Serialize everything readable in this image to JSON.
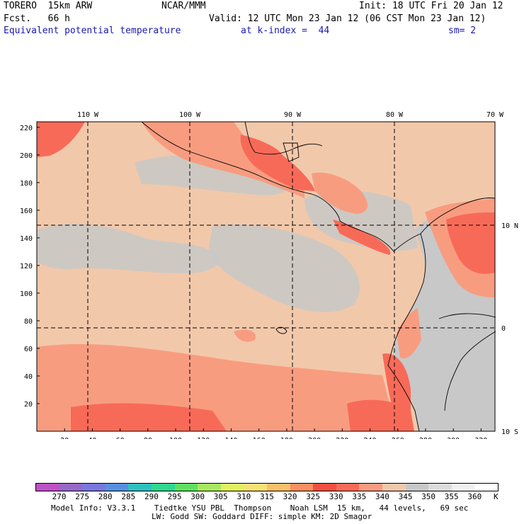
{
  "header": {
    "model": "TORERO  15km ARW",
    "forecast": "Fcst.   66 h",
    "center": "NCAR/MMM",
    "init": "Init: 18 UTC Fri 20 Jan 12",
    "valid": "Valid: 12 UTC Mon 23 Jan 12 (06 CST Mon 23 Jan 12)",
    "field": "Equivalent potential temperature",
    "kindex": "at k-index =  44",
    "smooth": "sm= 2"
  },
  "axes": {
    "x_ticks": [
      "20",
      "40",
      "60",
      "80",
      "100",
      "120",
      "140",
      "160",
      "180",
      "200",
      "220",
      "240",
      "260",
      "280",
      "300",
      "320"
    ],
    "y_ticks": [
      "20",
      "40",
      "60",
      "80",
      "100",
      "120",
      "140",
      "160",
      "180",
      "200",
      "220"
    ],
    "lon_labels": [
      "110 W",
      "100 W",
      "90 W",
      "80 W",
      "70 W"
    ],
    "lat_labels": [
      "10 N",
      "0",
      "10 S"
    ]
  },
  "colorbar": {
    "labels": [
      "270",
      "275",
      "280",
      "285",
      "290",
      "295",
      "300",
      "305",
      "310",
      "315",
      "320",
      "325",
      "330",
      "335",
      "340",
      "345",
      "350",
      "355",
      "360"
    ],
    "unit": "K",
    "colors": [
      "#c050c8",
      "#9868c8",
      "#7878e0",
      "#5890e0",
      "#30c0c0",
      "#30d890",
      "#60e060",
      "#a8e860",
      "#e0f060",
      "#f8e078",
      "#f8c068",
      "#f89060",
      "#f05040",
      "#f86a58",
      "#f89c80",
      "#f2c8aa",
      "#c8c8c8",
      "#dcdcdc",
      "#f0f0f0",
      "#ffffff"
    ]
  },
  "footer": {
    "line1": "Model Info: V3.3.1    Tiedtke YSU PBL  Thompson    Noah LSM  15 km,   44 levels,   69 sec",
    "line2": "LW: Godd SW: Goddard DIFF: simple KM: 2D Smagor"
  }
}
